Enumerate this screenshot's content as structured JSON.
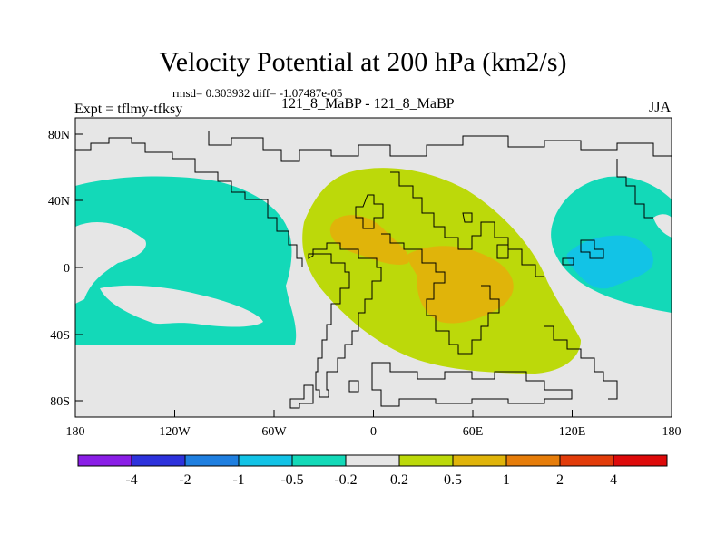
{
  "header": {
    "title": "Velocity Potential at 200 hPa (km2/s)",
    "stats": "rmsd= 0.303932 diff= -1.07487e-05",
    "experiment": "Expt = tflmy-tfksy",
    "runs": "121_8_MaBP - 121_8_MaBP",
    "season": "JJA"
  },
  "axes": {
    "x_ticks": [
      "180",
      "120W",
      "60W",
      "0",
      "60E",
      "120E",
      "180"
    ],
    "y_ticks": [
      "80N",
      "40N",
      "0",
      "40S",
      "80S"
    ]
  },
  "colorbar": {
    "labels": [
      "-4",
      "-2",
      "-1",
      "-0.5",
      "-0.2",
      "0.2",
      "0.5",
      "1",
      "2",
      "4"
    ],
    "colors": [
      "#8a1ee6",
      "#2d32dc",
      "#1f7fe0",
      "#12c3e6",
      "#13d9b8",
      "#e6e6e6",
      "#bcd90a",
      "#e0b40a",
      "#e67d0a",
      "#e23c0a",
      "#dd0a0a"
    ]
  },
  "colors": {
    "background": "#e6e6e6",
    "positive_1": "#bcd90a",
    "positive_2": "#e0b40a",
    "negative_1": "#13d9b8",
    "negative_2": "#12c3e6"
  }
}
